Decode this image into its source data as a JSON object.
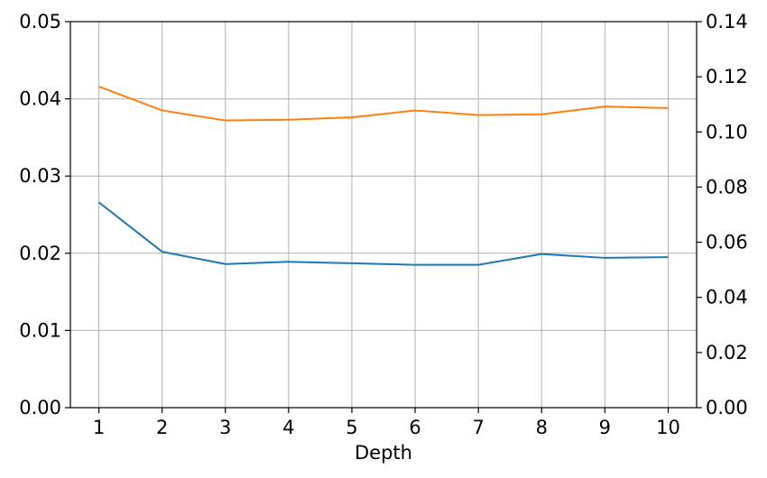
{
  "chart_data": {
    "type": "line",
    "title": "",
    "xlabel": "Depth",
    "ylabel_left": "",
    "ylabel_right": "",
    "x": [
      1,
      2,
      3,
      4,
      5,
      6,
      7,
      8,
      9,
      10
    ],
    "x_tick_labels": [
      "1",
      "2",
      "3",
      "4",
      "5",
      "6",
      "7",
      "8",
      "9",
      "10"
    ],
    "xlim": [
      0.55,
      10.45
    ],
    "ylim_left": [
      0,
      0.05
    ],
    "ylim_right": [
      0,
      0.14
    ],
    "y_left_ticks": [
      0,
      0.01,
      0.02,
      0.03,
      0.04,
      0.05
    ],
    "y_left_tick_labels": [
      "0.00",
      "0.01",
      "0.02",
      "0.03",
      "0.04",
      "0.05"
    ],
    "y_right_ticks": [
      0,
      0.02,
      0.04,
      0.06,
      0.08,
      0.1,
      0.12,
      0.14
    ],
    "y_right_tick_labels": [
      "0.00",
      "0.02",
      "0.04",
      "0.06",
      "0.08",
      "0.10",
      "0.12",
      "0.14"
    ],
    "grid": true,
    "series": [
      {
        "axis": "left",
        "color": "#1f77b4",
        "values": [
          0.0266,
          0.0202,
          0.0186,
          0.0189,
          0.0187,
          0.0185,
          0.0185,
          0.0199,
          0.0194,
          0.0195
        ]
      },
      {
        "axis": "left",
        "color": "#ff7f0e",
        "values": [
          0.0416,
          0.0385,
          0.0372,
          0.0373,
          0.0376,
          0.0385,
          0.0379,
          0.038,
          0.039,
          0.0388
        ]
      }
    ]
  }
}
